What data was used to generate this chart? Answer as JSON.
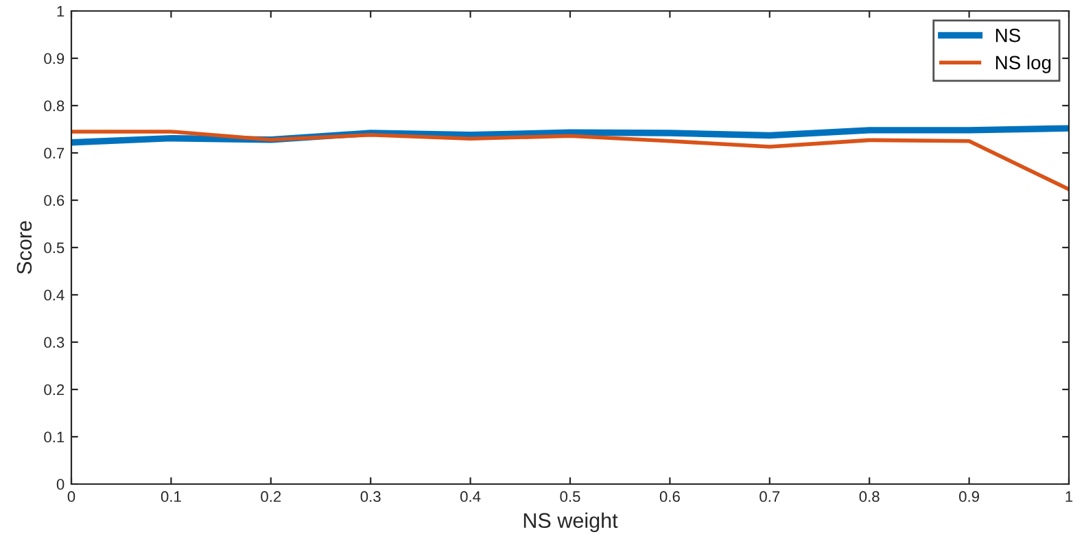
{
  "chart_data": {
    "type": "line",
    "xlabel": "NS weight",
    "ylabel": "Score",
    "x": [
      0,
      0.1,
      0.2,
      0.3,
      0.4,
      0.5,
      0.6,
      0.7,
      0.8,
      0.9,
      1
    ],
    "series": [
      {
        "name": "NS",
        "color": "#0072bd",
        "values": [
          0.722,
          0.731,
          0.728,
          0.742,
          0.738,
          0.743,
          0.742,
          0.737,
          0.748,
          0.748,
          0.752
        ]
      },
      {
        "name": "NS log",
        "color": "#d95319",
        "values": [
          0.745,
          0.745,
          0.728,
          0.738,
          0.73,
          0.736,
          0.725,
          0.713,
          0.727,
          0.725,
          0.623
        ]
      }
    ],
    "xlim": [
      0,
      1
    ],
    "xticks": [
      0,
      0.1,
      0.2,
      0.3,
      0.4,
      0.5,
      0.6,
      0.7,
      0.8,
      0.9,
      1
    ],
    "ylim": [
      0,
      1
    ],
    "yticks": [
      0,
      0.1,
      0.2,
      0.3,
      0.4,
      0.5,
      0.6,
      0.7,
      0.8,
      0.9,
      1
    ],
    "grid": false,
    "legend": "top right",
    "marker": "none",
    "line_style": "solid"
  }
}
